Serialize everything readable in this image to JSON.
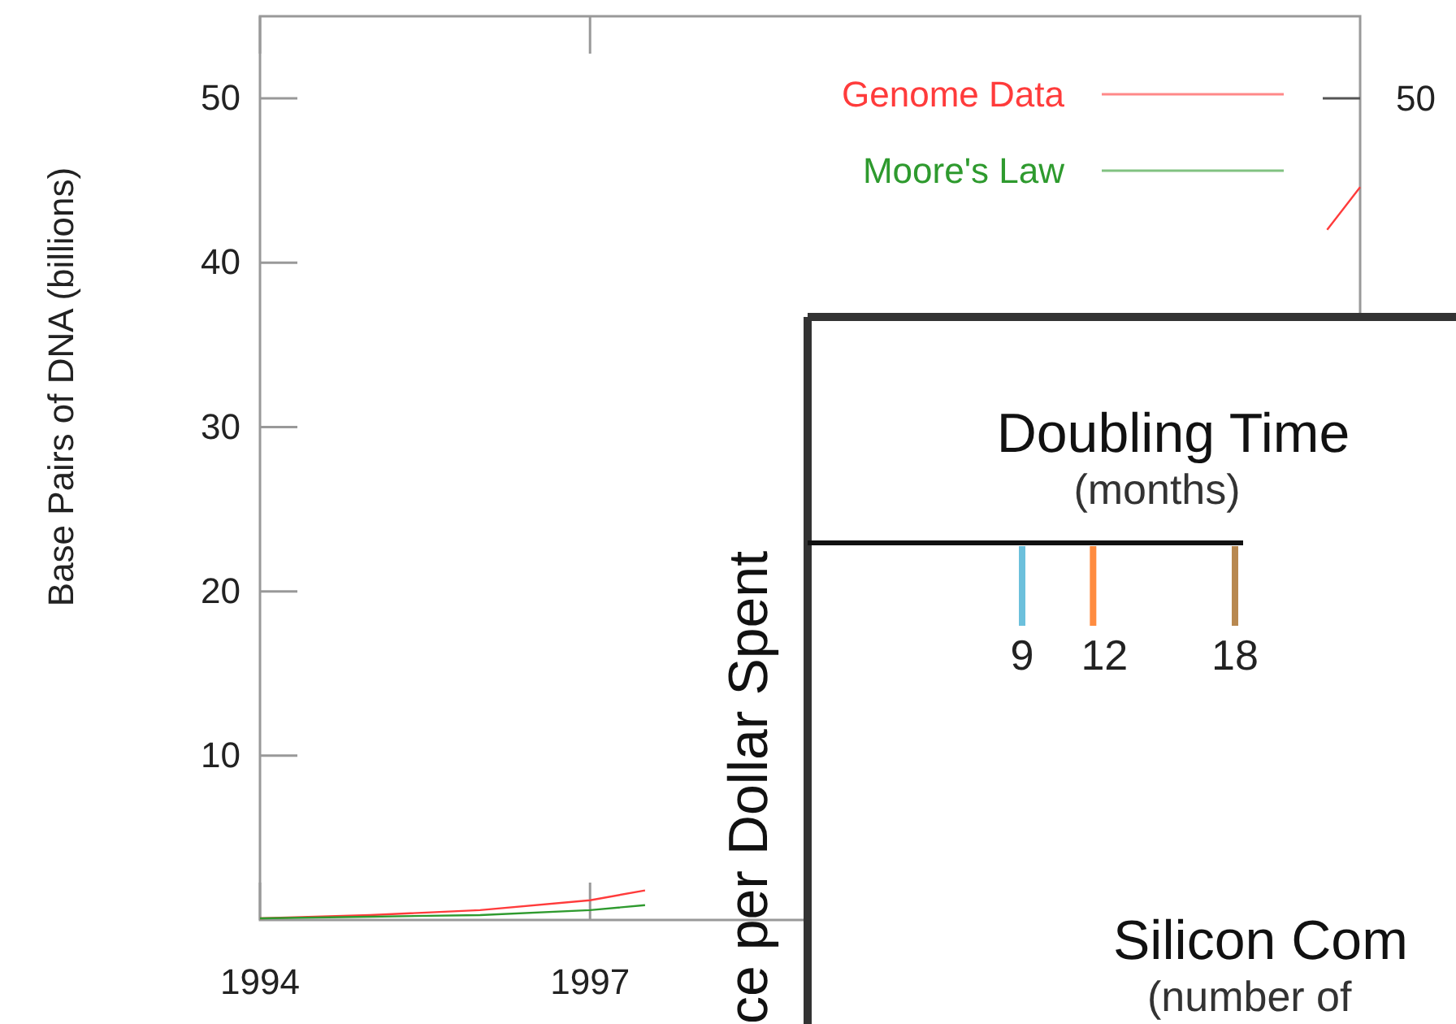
{
  "chart_data": [
    {
      "type": "line",
      "ylabel": "Base Pairs of DNA (billions)",
      "xlim": [
        1994,
        2004
      ],
      "xticks": [
        1994,
        1997
      ],
      "ylim": [
        0,
        55
      ],
      "yticks": [
        10,
        20,
        30,
        40,
        50
      ],
      "annotations": [
        "50"
      ],
      "legend": "top right",
      "grid": false,
      "series": [
        {
          "name": "Genome Data",
          "color": "#ff3b3b",
          "x": [
            1994,
            1995,
            1996,
            1997,
            1997.5,
            1998,
            2003.7,
            2004
          ],
          "values": [
            0.1,
            0.3,
            0.6,
            1.2,
            1.8,
            null,
            42,
            44.6
          ]
        },
        {
          "name": "Moore's Law",
          "color": "#2e9a2e",
          "x": [
            1994,
            1995,
            1996,
            1997,
            1997.5
          ],
          "values": [
            0.1,
            0.2,
            0.3,
            0.6,
            0.9
          ]
        }
      ]
    },
    {
      "type": "other",
      "title": "Doubling Time",
      "subtitle": "(months)",
      "ylabel": "ce per Dollar Spent",
      "xlabel": "Silicon Com",
      "annotations": [
        "(number of"
      ],
      "series": [
        {
          "name": "9",
          "color": "#6cc0dc"
        },
        {
          "name": "12",
          "color": "#ff8c40"
        },
        {
          "name": "18",
          "color": "#b88850"
        }
      ]
    }
  ]
}
